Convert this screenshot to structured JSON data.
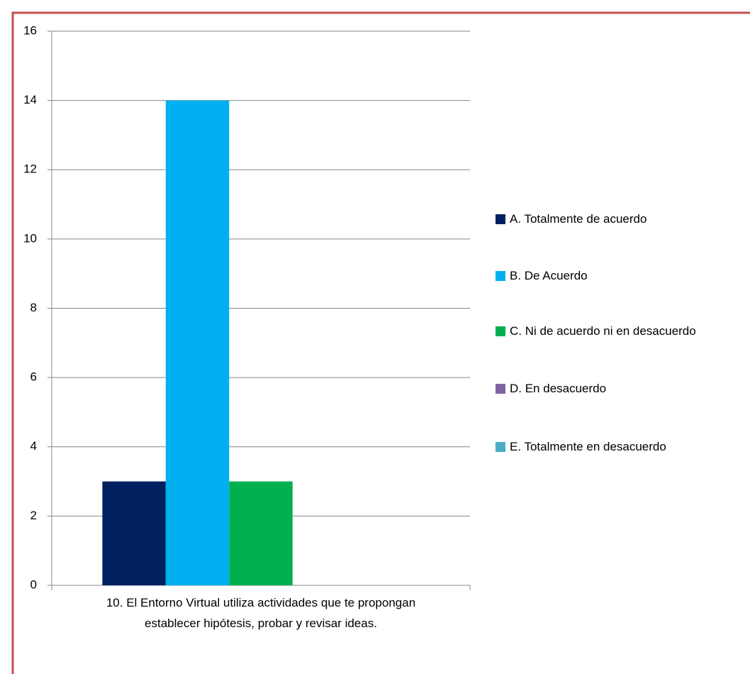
{
  "chart_data": {
    "type": "bar",
    "categories": [
      "10. El Entorno Virtual utiliza actividades que te propongan establecer hipótesis, probar y revisar ideas."
    ],
    "series": [
      {
        "name": "A. Totalmente de acuerdo",
        "color": "#002060",
        "values": [
          3
        ]
      },
      {
        "name": "B. De Acuerdo",
        "color": "#00b0f0",
        "values": [
          14
        ]
      },
      {
        "name": "C. Ni de acuerdo ni en desacuerdo",
        "color": "#00b050",
        "values": [
          3
        ]
      },
      {
        "name": "D. En desacuerdo",
        "color": "#8064a2",
        "values": [
          0
        ]
      },
      {
        "name": "E. Totalmente en desacuerdo",
        "color": "#4bacc6",
        "values": [
          0
        ]
      }
    ],
    "ylim": [
      0,
      16
    ],
    "yticks": [
      0,
      2,
      4,
      6,
      8,
      10,
      12,
      14,
      16
    ],
    "grid": true,
    "legend": "right"
  }
}
